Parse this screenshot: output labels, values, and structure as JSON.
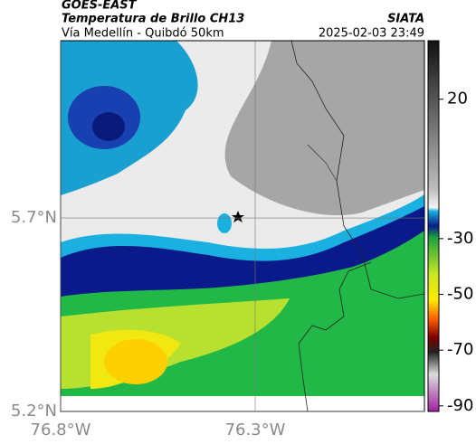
{
  "header": {
    "source": "GOES-EAST",
    "title": "Temperatura de Brillo CH13",
    "subtitle": "Vía Medellín - Quibdó 50km",
    "brand": "SIATA",
    "timestamp": "2025-02-03 23:49"
  },
  "map": {
    "xlim": [
      -76.8,
      -75.865
    ],
    "ylim": [
      5.2,
      6.158
    ],
    "xticks": [
      {
        "value": -76.8,
        "label": "76.8°W"
      },
      {
        "value": -76.3,
        "label": "76.3°W"
      }
    ],
    "yticks": [
      {
        "value": 5.7,
        "label": "5.7°N"
      },
      {
        "value": 5.2,
        "label": "5.2°N"
      }
    ],
    "grid": true
  },
  "colorbar": {
    "lim": [
      -92,
      41
    ],
    "ticks": [
      20,
      -30,
      -50,
      -70,
      -90
    ]
  }
}
